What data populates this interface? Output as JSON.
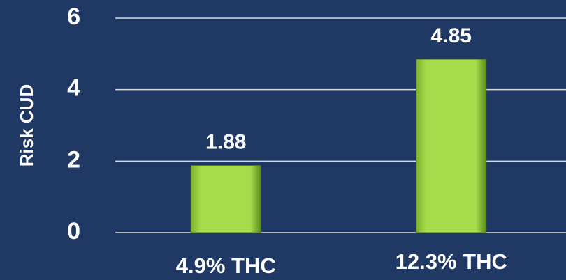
{
  "chart_data": {
    "type": "bar",
    "y_label": "Risk CUD",
    "categories": [
      "4.9% THC",
      "12.3% THC"
    ],
    "values": [
      1.88,
      4.85
    ],
    "color": "#8cc63f",
    "ylim": [
      0,
      6
    ],
    "yticks": [
      0,
      2,
      4,
      6
    ],
    "grid": true,
    "data_labels": true
  }
}
